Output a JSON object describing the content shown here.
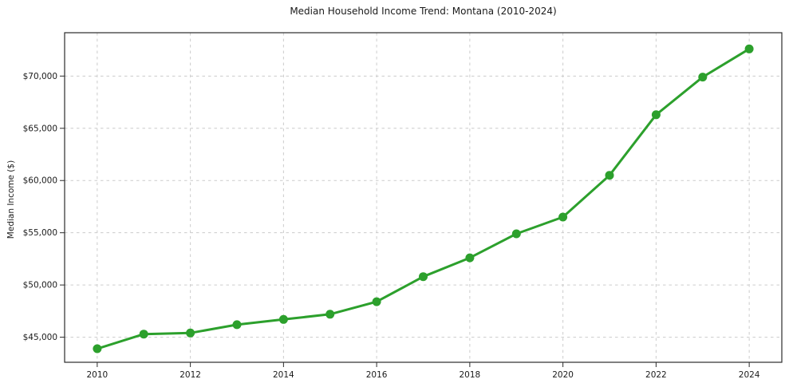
{
  "chart_data": {
    "type": "line",
    "title": "Median Household Income Trend: Montana (2010-2024)",
    "xlabel": "",
    "ylabel": "Median Income ($)",
    "series_name": "Median household income",
    "x": [
      2010,
      2011,
      2012,
      2013,
      2014,
      2015,
      2016,
      2017,
      2018,
      2019,
      2020,
      2021,
      2022,
      2023,
      2024
    ],
    "values": [
      43900,
      45300,
      45400,
      46200,
      46700,
      47200,
      48400,
      50800,
      52600,
      54900,
      56500,
      60500,
      66300,
      69900,
      72600
    ],
    "xlim": [
      2009.3,
      2024.7
    ],
    "ylim": [
      42600,
      74150
    ],
    "yticks": [
      45000,
      50000,
      55000,
      60000,
      65000,
      70000
    ],
    "ytick_labels": [
      "$45,000",
      "$50,000",
      "$55,000",
      "$60,000",
      "$65,000",
      "$70,000"
    ],
    "xticks": [
      2010,
      2012,
      2014,
      2016,
      2018,
      2020,
      2022,
      2024
    ],
    "xtick_labels": [
      "2010",
      "2012",
      "2014",
      "2016",
      "2018",
      "2020",
      "2022",
      "2024"
    ],
    "grid": "dashed lines at labeled ticks, both axes",
    "legend": "none",
    "marker": "circle",
    "colors": {
      "line": "#2ca02c",
      "grid": "#cccccc",
      "spine": "#2b2b2b",
      "text": "#1a1a1a",
      "background": "#ffffff"
    }
  }
}
